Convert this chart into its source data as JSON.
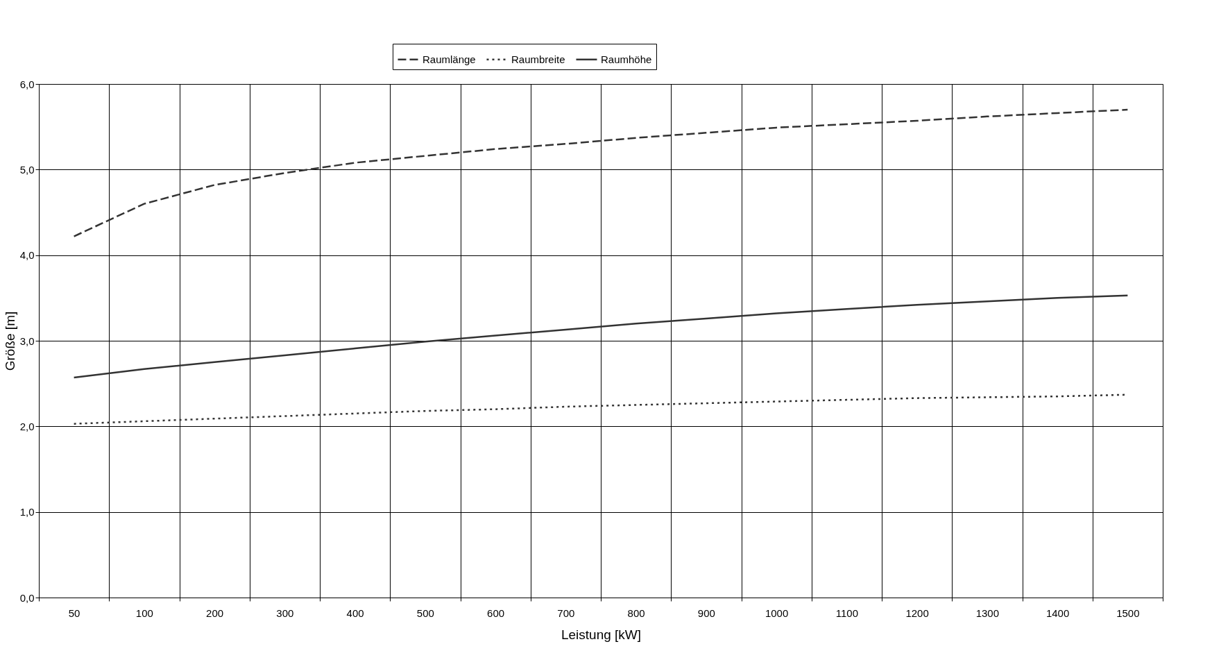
{
  "chart_data": {
    "type": "line",
    "xlabel": "Leistung [kW]",
    "ylabel": "Größe [m]",
    "categories": [
      "50",
      "100",
      "200",
      "300",
      "400",
      "500",
      "600",
      "700",
      "800",
      "900",
      "1000",
      "1100",
      "1200",
      "1300",
      "1400",
      "1500"
    ],
    "series": [
      {
        "name": "Raumlänge",
        "color": "#333333",
        "line_style": "dashed",
        "values": [
          4.22,
          4.6,
          4.82,
          4.96,
          5.08,
          5.16,
          5.24,
          5.3,
          5.37,
          5.43,
          5.49,
          5.53,
          5.57,
          5.62,
          5.66,
          5.7
        ]
      },
      {
        "name": "Raumbreite",
        "color": "#333333",
        "line_style": "dotted",
        "values": [
          2.03,
          2.06,
          2.09,
          2.12,
          2.15,
          2.18,
          2.2,
          2.23,
          2.25,
          2.27,
          2.29,
          2.31,
          2.33,
          2.34,
          2.35,
          2.37
        ]
      },
      {
        "name": "Raumhöhe",
        "color": "#333333",
        "line_style": "solid",
        "values": [
          2.57,
          2.67,
          2.75,
          2.83,
          2.91,
          2.99,
          3.06,
          3.13,
          3.2,
          3.26,
          3.32,
          3.37,
          3.42,
          3.46,
          3.5,
          3.53
        ]
      }
    ],
    "ylim": [
      0,
      6
    ],
    "yticks": [
      {
        "value": 0,
        "label": "0,0"
      },
      {
        "value": 1,
        "label": "1,0"
      },
      {
        "value": 2,
        "label": "2,0"
      },
      {
        "value": 3,
        "label": "3,0"
      },
      {
        "value": 4,
        "label": "4,0"
      },
      {
        "value": 5,
        "label": "5,0"
      },
      {
        "value": 6,
        "label": "6,0"
      }
    ],
    "grid": true,
    "legend": "top",
    "marker": "none"
  }
}
